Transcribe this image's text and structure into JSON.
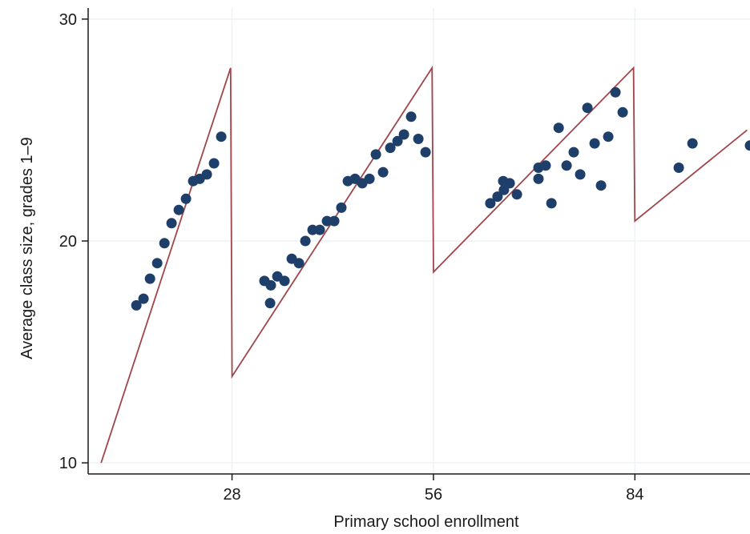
{
  "chart_data": {
    "type": "scatter",
    "title": "",
    "xlabel": "Primary school enrollment",
    "ylabel": "Average class size, grades 1–9",
    "xlim": [
      8,
      100
    ],
    "ylim": [
      9.5,
      30.5
    ],
    "xticks": [
      28,
      56,
      84
    ],
    "yticks": [
      10,
      20,
      30
    ],
    "grid": true,
    "colors": {
      "points": "#1f3f6b",
      "line": "#a0464b",
      "axis": "#1a1a1a",
      "grid": "#eef2f4"
    },
    "series": [
      {
        "type": "scatter",
        "points": [
          [
            14.7,
            17.1
          ],
          [
            15.7,
            17.4
          ],
          [
            16.6,
            18.3
          ],
          [
            17.6,
            19.0
          ],
          [
            18.6,
            19.9
          ],
          [
            19.6,
            20.8
          ],
          [
            20.6,
            21.4
          ],
          [
            21.6,
            21.9
          ],
          [
            22.6,
            22.7
          ],
          [
            23.5,
            22.8
          ],
          [
            24.5,
            23.0
          ],
          [
            25.5,
            23.5
          ],
          [
            26.5,
            24.7
          ],
          [
            32.5,
            18.2
          ],
          [
            33.4,
            18.0
          ],
          [
            33.3,
            17.2
          ],
          [
            34.3,
            18.4
          ],
          [
            35.3,
            18.2
          ],
          [
            36.3,
            19.2
          ],
          [
            37.3,
            19.0
          ],
          [
            38.2,
            20.0
          ],
          [
            39.2,
            20.5
          ],
          [
            40.2,
            20.5
          ],
          [
            41.2,
            20.9
          ],
          [
            42.2,
            20.9
          ],
          [
            43.2,
            21.5
          ],
          [
            44.1,
            22.7
          ],
          [
            45.1,
            22.8
          ],
          [
            46.1,
            22.6
          ],
          [
            47.1,
            22.8
          ],
          [
            48.0,
            23.9
          ],
          [
            49.0,
            23.1
          ],
          [
            50.0,
            24.2
          ],
          [
            51.0,
            24.5
          ],
          [
            51.9,
            24.8
          ],
          [
            52.9,
            25.6
          ],
          [
            53.9,
            24.6
          ],
          [
            54.9,
            24.0
          ],
          [
            63.9,
            21.7
          ],
          [
            64.9,
            22.0
          ],
          [
            65.8,
            22.3
          ],
          [
            65.7,
            22.7
          ],
          [
            66.6,
            22.6
          ],
          [
            67.6,
            22.1
          ],
          [
            70.6,
            22.8
          ],
          [
            70.6,
            23.3
          ],
          [
            71.6,
            23.4
          ],
          [
            72.4,
            21.7
          ],
          [
            73.4,
            25.1
          ],
          [
            74.5,
            23.4
          ],
          [
            75.5,
            24.0
          ],
          [
            76.4,
            23.0
          ],
          [
            77.4,
            26.0
          ],
          [
            78.4,
            24.4
          ],
          [
            79.3,
            22.5
          ],
          [
            80.3,
            24.7
          ],
          [
            81.3,
            26.7
          ],
          [
            82.3,
            25.8
          ],
          [
            90.1,
            23.3
          ],
          [
            92.0,
            24.4
          ],
          [
            100.0,
            24.3
          ]
        ]
      },
      {
        "type": "line",
        "points": [
          [
            9.8,
            10.0
          ],
          [
            27.8,
            27.8
          ],
          [
            28.0,
            13.9
          ],
          [
            55.8,
            27.8
          ],
          [
            56.0,
            18.6
          ],
          [
            83.8,
            27.8
          ],
          [
            84.0,
            20.9
          ],
          [
            99.6,
            25.0
          ]
        ]
      }
    ]
  }
}
